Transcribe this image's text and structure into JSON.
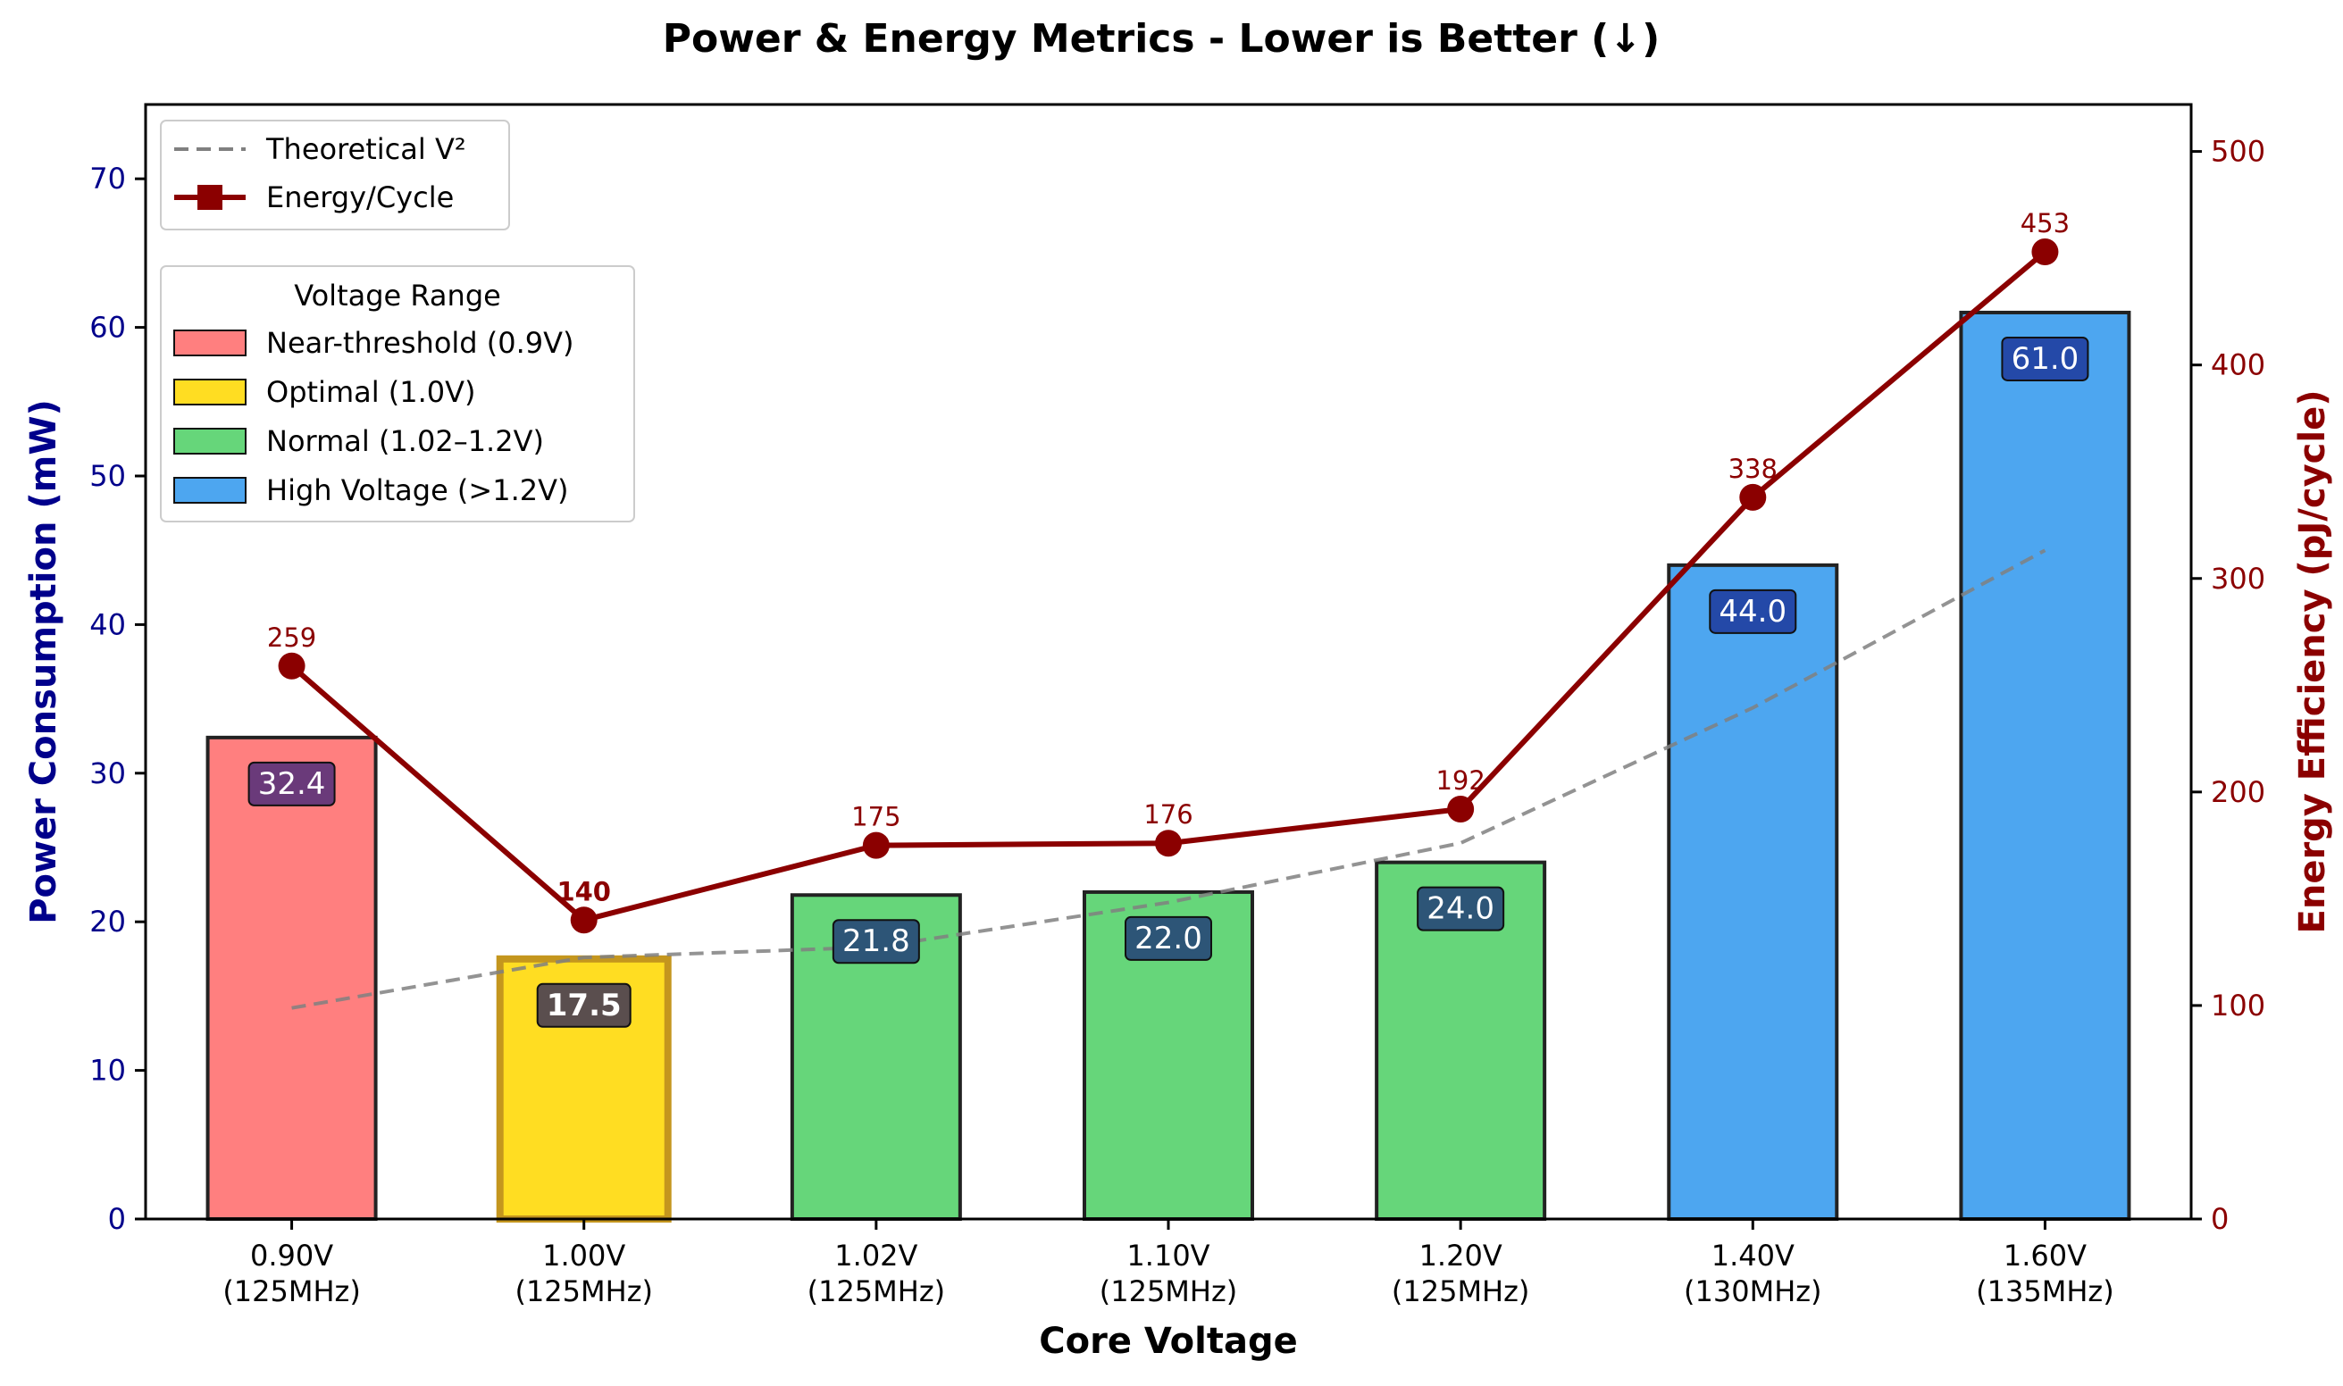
{
  "chart_data": {
    "type": "bar",
    "title": "Power & Energy Metrics - Lower is Better (↓)",
    "xlabel": "Core Voltage",
    "ylabel": "Power Consumption (mW)",
    "y2label": "Energy Efficiency (pJ/cycle)",
    "ylim": [
      0,
      75
    ],
    "y2lim": [
      0,
      522
    ],
    "yticks": [
      0,
      10,
      20,
      30,
      40,
      50,
      60,
      70
    ],
    "y2ticks": [
      0,
      100,
      200,
      300,
      400,
      500
    ],
    "categories": [
      {
        "voltage": "0.90V",
        "freq": "(125MHz)"
      },
      {
        "voltage": "1.00V",
        "freq": "(125MHz)"
      },
      {
        "voltage": "1.02V",
        "freq": "(125MHz)"
      },
      {
        "voltage": "1.10V",
        "freq": "(125MHz)"
      },
      {
        "voltage": "1.20V",
        "freq": "(125MHz)"
      },
      {
        "voltage": "1.40V",
        "freq": "(130MHz)"
      },
      {
        "voltage": "1.60V",
        "freq": "(135MHz)"
      }
    ],
    "power": {
      "values": [
        32.4,
        17.5,
        21.8,
        22.0,
        24.0,
        44.0,
        61.0
      ],
      "labels": [
        "32.4",
        "17.5",
        "21.8",
        "22.0",
        "24.0",
        "44.0",
        "61.0"
      ],
      "range_index": [
        0,
        1,
        2,
        2,
        2,
        3,
        3
      ]
    },
    "energy": {
      "name": "Energy/Cycle",
      "values": [
        259,
        140,
        175,
        176,
        192,
        338,
        453
      ],
      "labels": [
        "259",
        "140",
        "175",
        "176",
        "192",
        "338",
        "453"
      ],
      "color": "#8b0000"
    },
    "theoretical": {
      "name": "Theoretical V²",
      "values": [
        14.2,
        17.6,
        18.3,
        21.3,
        25.3,
        34.4,
        45.0
      ],
      "color": "#808080"
    },
    "legend_lines_position": "top-left",
    "legend_ranges": {
      "title": "Voltage Range",
      "position": "upper-left",
      "items": [
        {
          "label": "Near-threshold (0.9V)",
          "color": "#ff7f7f"
        },
        {
          "label": "Optimal (1.0V)",
          "color": "#ffdd22"
        },
        {
          "label": "Normal (1.02–1.2V)",
          "color": "#66d67a"
        },
        {
          "label": "High Voltage (>1.2V)",
          "color": "#4da6f0"
        }
      ]
    },
    "label_box_colors": [
      "#6a3a7a",
      "#5a4e4e",
      "#2d5577",
      "#2d5577",
      "#2d5577",
      "#2449a8",
      "#2449a8"
    ],
    "optimal_edge_color": "#c4961e",
    "left_axis_color": "#00008b",
    "right_axis_color": "#8b0000",
    "grid": false
  }
}
